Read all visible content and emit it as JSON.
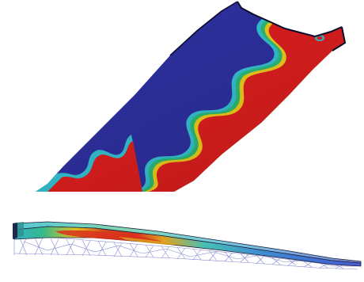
{
  "figure": {
    "panels": [
      {
        "id": "curved-panel-contour",
        "description_visible": false
      },
      {
        "id": "beam-truss-contour",
        "description_visible": false
      }
    ],
    "colors": {
      "background": "#ffffff",
      "low": "#2f31a3",
      "high": "#e41f1f",
      "band_yellow": "#f2d21a",
      "band_green": "#2fbf7a",
      "band_cyan": "#36c6d8",
      "edge": "#0b0c2c",
      "mesh": "#6f76c8"
    }
  }
}
